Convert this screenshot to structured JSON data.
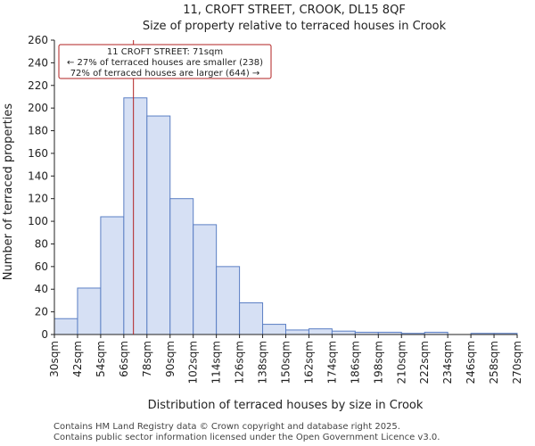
{
  "chart_data": {
    "type": "bar",
    "title": "11, CROFT STREET, CROOK, DL15 8QF",
    "subtitle": "Size of property relative to terraced houses in Crook",
    "xlabel": "Distribution of terraced houses by size in Crook",
    "ylabel": "Number of terraced properties",
    "ylim": [
      0,
      260
    ],
    "yticks": [
      0,
      20,
      40,
      60,
      80,
      100,
      120,
      140,
      160,
      180,
      200,
      220,
      240,
      260
    ],
    "bin_edges": [
      30,
      42,
      54,
      66,
      78,
      90,
      102,
      114,
      126,
      138,
      150,
      162,
      174,
      186,
      198,
      210,
      222,
      234,
      246,
      258,
      270
    ],
    "tick_labels": [
      "30sqm",
      "42sqm",
      "54sqm",
      "66sqm",
      "78sqm",
      "90sqm",
      "102sqm",
      "114sqm",
      "126sqm",
      "138sqm",
      "150sqm",
      "162sqm",
      "174sqm",
      "186sqm",
      "198sqm",
      "210sqm",
      "222sqm",
      "234sqm",
      "246sqm",
      "258sqm",
      "270sqm"
    ],
    "values": [
      14,
      41,
      104,
      209,
      193,
      120,
      97,
      60,
      28,
      9,
      4,
      5,
      3,
      2,
      2,
      1,
      2,
      0,
      1,
      1
    ],
    "bar_color": "#d6e0f4",
    "bar_edge_color": "#5b7fc4",
    "marker": {
      "value": 71,
      "color": "#b22222",
      "annotation": [
        "11 CROFT STREET: 71sqm",
        "← 27% of terraced houses are smaller (238)",
        "72% of terraced houses are larger (644) →"
      ]
    },
    "grid": false
  },
  "footer": {
    "line1": "Contains HM Land Registry data © Crown copyright and database right 2025.",
    "line2": "Contains public sector information licensed under the Open Government Licence v3.0."
  }
}
